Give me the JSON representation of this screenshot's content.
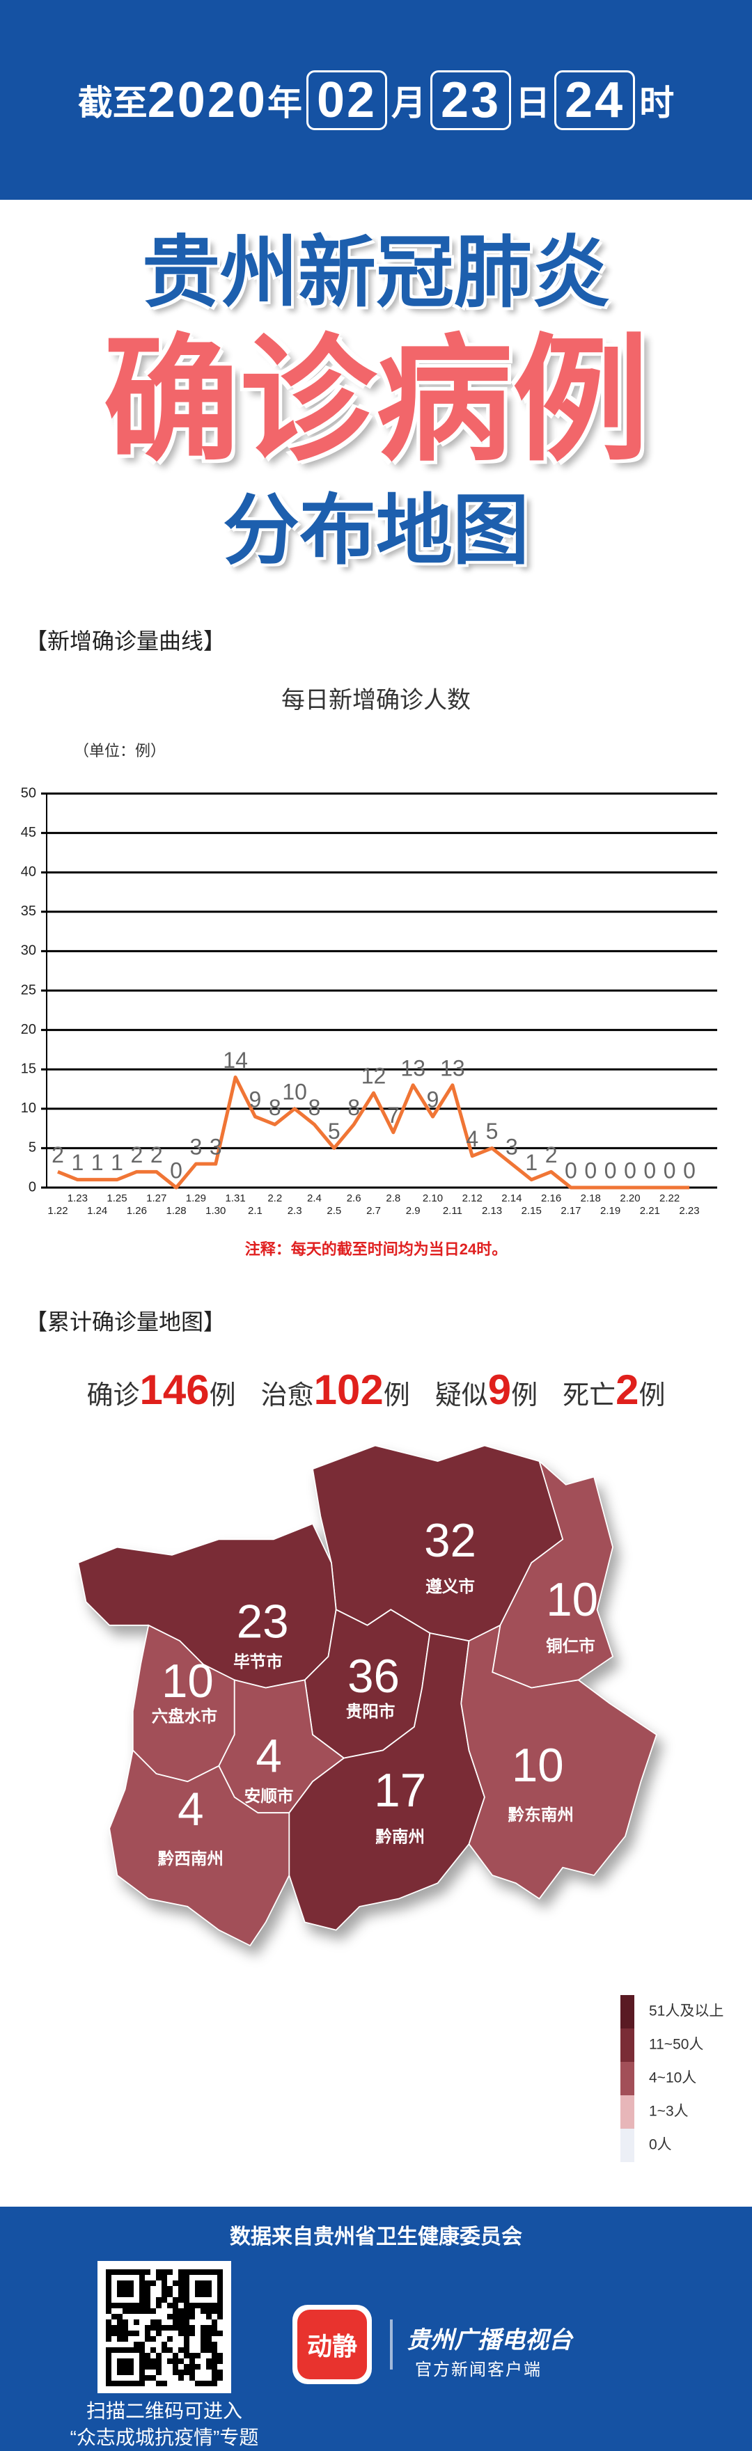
{
  "header": {
    "parts": [
      "截至",
      "2020",
      "年",
      "02",
      "月",
      "23",
      "日",
      "24",
      "时"
    ]
  },
  "title": {
    "line1": "贵州新冠肺炎",
    "line2": "确诊病例",
    "line3": "分布地图"
  },
  "section1": "【新增确诊量曲线】",
  "section2": "【累计确诊量地图】",
  "summary": [
    {
      "label": "确诊",
      "value": 146,
      "unit": "例"
    },
    {
      "label": "治愈",
      "value": 102,
      "unit": "例"
    },
    {
      "label": "疑似",
      "value": 9,
      "unit": "例"
    },
    {
      "label": "死亡",
      "value": 2,
      "unit": "例"
    }
  ],
  "chart_data": [
    {
      "type": "line",
      "title": "每日新增确诊人数",
      "unit_label": "（单位：例）",
      "categories": [
        "1.22",
        "1.23",
        "1.24",
        "1.25",
        "1.26",
        "1.27",
        "1.28",
        "1.29",
        "1.30",
        "1.31",
        "2.1",
        "2.2",
        "2.3",
        "2.4",
        "2.5",
        "2.6",
        "2.7",
        "2.8",
        "2.9",
        "2.10",
        "2.11",
        "2.12",
        "2.13",
        "2.14",
        "2.15",
        "2.16",
        "2.17",
        "2.18",
        "2.19",
        "2.20",
        "2.21",
        "2.22",
        "2.23"
      ],
      "values": [
        2,
        1,
        1,
        1,
        2,
        2,
        0,
        3,
        3,
        14,
        9,
        8,
        10,
        8,
        5,
        8,
        12,
        7,
        13,
        9,
        13,
        4,
        5,
        3,
        1,
        2,
        0,
        0,
        0,
        0,
        0,
        0,
        0
      ],
      "color": "#f07535",
      "ylim": [
        0,
        50
      ],
      "yticks": [
        0,
        5,
        10,
        15,
        20,
        25,
        30,
        35,
        40,
        45,
        50
      ],
      "grid": true,
      "note": "注释：每天的截至时间均为当日24时。"
    },
    {
      "type": "map",
      "regions": [
        {
          "name": "遵义市",
          "value": 32,
          "color": "#7a2c36"
        },
        {
          "name": "铜仁市",
          "value": 10,
          "color": "#a24f58"
        },
        {
          "name": "毕节市",
          "value": 23,
          "color": "#7a2c36"
        },
        {
          "name": "六盘水市",
          "value": 10,
          "color": "#a24f58"
        },
        {
          "name": "贵阳市",
          "value": 36,
          "color": "#7a2c36"
        },
        {
          "name": "安顺市",
          "value": 4,
          "color": "#a24f58"
        },
        {
          "name": "黔西南州",
          "value": 4,
          "color": "#a24f58"
        },
        {
          "name": "黔南州",
          "value": 17,
          "color": "#7a2c36"
        },
        {
          "name": "黔东南州",
          "value": 10,
          "color": "#a24f58"
        }
      ],
      "legend": [
        {
          "label": "51人及以上",
          "color": "#5a1a23"
        },
        {
          "label": "11~50人",
          "color": "#7a2c36"
        },
        {
          "label": "4~10人",
          "color": "#a24f58"
        },
        {
          "label": "1~3人",
          "color": "#e7b6b9"
        },
        {
          "label": "0人",
          "color": "#eceff6"
        }
      ]
    }
  ],
  "footer": {
    "source": "数据来自贵州省卫生健康委员会",
    "qr_line1": "扫描二维码可进入",
    "qr_line2": "“众志成城抗疫情”专题",
    "logo": "动静",
    "brand": "贵州广播电视台",
    "brand_sub": "官方新闻客户端"
  }
}
